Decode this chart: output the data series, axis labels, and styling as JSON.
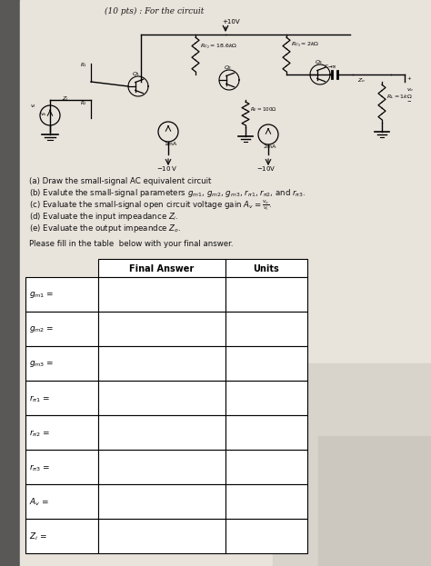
{
  "bg_color": "#9a9898",
  "page_color": "#e8e4de",
  "shadow_left": "#5a5856",
  "title": "(10 pts) : For the circuit",
  "questions": [
    "(a) Draw the small-signal AC equivalent circuit",
    "(b) Evalute the small-signal parameters $g_{m1}$, $g_{m2}$, $g_{m3}$, $r_{\\pi1}$, $r_{\\pi2}$, and $r_{\\pi3}$.",
    "(c) Evaluate the small-signal open circuit voltage gain $A_v = \\frac{v_o}{v_i}$.",
    "(d) Evaluate the input impeadance $Z_i$.",
    "(e) Evaluate the output impeandce $Z_o$."
  ],
  "fill_text": "Please fill in the table  below with your final answer.",
  "table_headers": [
    "Final Answer",
    "Units"
  ],
  "table_row_labels": [
    "$g_{m1}$ =",
    "$g_{m2}$ =",
    "$g_{m3}$ =",
    "$r_{\\pi1}$ =",
    "$r_{\\pi2}$ =",
    "$r_{\\pi3}$ =",
    "$A_v$ =",
    "$Z_i$ ="
  ]
}
